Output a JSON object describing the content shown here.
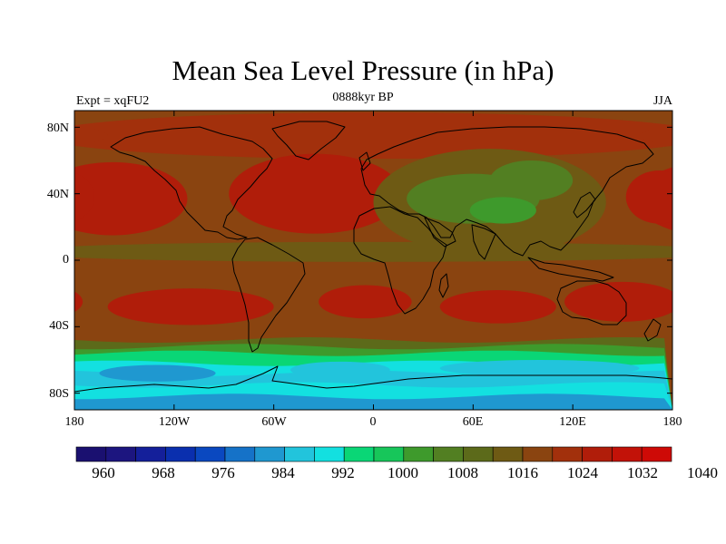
{
  "title": "Mean Sea Level Pressure (in hPa)",
  "subtitle_left": "Expt = xqFU2",
  "subtitle_center": "0888kyr BP",
  "subtitle_right": "JJA",
  "lat_ticks": [
    {
      "label": "80N",
      "lat": 80
    },
    {
      "label": "40N",
      "lat": 40
    },
    {
      "label": "0",
      "lat": 0
    },
    {
      "label": "40S",
      "lat": -40
    },
    {
      "label": "80S",
      "lat": -80
    }
  ],
  "lon_ticks": [
    {
      "label": "180",
      "lon": -180
    },
    {
      "label": "120W",
      "lon": -120
    },
    {
      "label": "60W",
      "lon": -60
    },
    {
      "label": "0",
      "lon": 0
    },
    {
      "label": "60E",
      "lon": 60
    },
    {
      "label": "120E",
      "lon": 120
    },
    {
      "label": "180",
      "lon": 180
    }
  ],
  "colorbar": {
    "unit": "hPa",
    "min": 956,
    "step": 4,
    "colors": [
      "#1a1070",
      "#1c157f",
      "#141f9a",
      "#0a2fae",
      "#0a48c0",
      "#1572c8",
      "#1f98d0",
      "#22c4dc",
      "#13e0e0",
      "#0ad676",
      "#17c65a",
      "#3e9a2c",
      "#527f22",
      "#5c6a1a",
      "#6e5a14",
      "#8a4410",
      "#a2300c",
      "#b01d0a",
      "#c21208",
      "#ce0a06"
    ],
    "labels": [
      {
        "text": "960",
        "value": 960
      },
      {
        "text": "968",
        "value": 968
      },
      {
        "text": "976",
        "value": 976
      },
      {
        "text": "984",
        "value": 984
      },
      {
        "text": "992",
        "value": 992
      },
      {
        "text": "1000",
        "value": 1000
      },
      {
        "text": "1008",
        "value": 1008
      },
      {
        "text": "1016",
        "value": 1016
      },
      {
        "text": "1024",
        "value": 1024
      },
      {
        "text": "1032",
        "value": 1032
      },
      {
        "text": "1040",
        "value": 1040
      }
    ]
  },
  "pressure_field": {
    "background_hpa": 1018,
    "regions": [
      {
        "name": "arctic-high",
        "hpa": 1022,
        "lon": 0,
        "lat": 75,
        "rlon": 200,
        "rlat": 14
      },
      {
        "name": "north-pacific-high",
        "hpa": 1030,
        "lon": -157,
        "lat": 35,
        "rlon": 32,
        "rlat": 14
      },
      {
        "name": "north-pacific-high-ring",
        "hpa": 1024,
        "lon": -157,
        "lat": 37,
        "rlon": 45,
        "rlat": 22
      },
      {
        "name": "azores-high",
        "hpa": 1030,
        "lon": -35,
        "lat": 37,
        "rlon": 38,
        "rlat": 14
      },
      {
        "name": "azores-high-ring",
        "hpa": 1024,
        "lon": -35,
        "lat": 40,
        "rlon": 52,
        "rlat": 24
      },
      {
        "name": "west-pacific-high",
        "hpa": 1024,
        "lon": 172,
        "lat": 38,
        "rlon": 20,
        "rlat": 16
      },
      {
        "name": "asia-low-outer",
        "hpa": 1012,
        "lon": 70,
        "lat": 35,
        "rlon": 70,
        "rlat": 32
      },
      {
        "name": "asia-low",
        "hpa": 1006,
        "lon": 60,
        "lat": 37,
        "rlon": 40,
        "rlat": 15
      },
      {
        "name": "asia-low-east",
        "hpa": 1006,
        "lon": 95,
        "lat": 48,
        "rlon": 25,
        "rlat": 12
      },
      {
        "name": "asia-low-core",
        "hpa": 1002,
        "lon": 78,
        "lat": 30,
        "rlon": 20,
        "rlat": 8
      },
      {
        "name": "tropical-belt",
        "hpa": 1014,
        "lon": 0,
        "lat": 5,
        "rlon": 220,
        "rlat": 6
      },
      {
        "name": "south-pacific-high",
        "hpa": 1024,
        "lon": -110,
        "lat": -28,
        "rlon": 50,
        "rlat": 11
      },
      {
        "name": "south-atlantic-high",
        "hpa": 1024,
        "lon": -5,
        "lat": -25,
        "rlon": 28,
        "rlat": 10
      },
      {
        "name": "indian-ocean-high",
        "hpa": 1026,
        "lon": 75,
        "lat": -28,
        "rlon": 35,
        "rlat": 10
      },
      {
        "name": "australia-high",
        "hpa": 1024,
        "lon": 150,
        "lat": -25,
        "rlon": 35,
        "rlat": 12
      }
    ],
    "southern_gradient": [
      {
        "lat": -48,
        "hpa": 1008
      },
      {
        "lat": -52,
        "hpa": 1000
      },
      {
        "lat": -56,
        "hpa": 994
      },
      {
        "lat": -62,
        "hpa": 990
      },
      {
        "lat": -68,
        "hpa": 984
      },
      {
        "lat": -75,
        "hpa": 988
      },
      {
        "lat": -82,
        "hpa": 982
      }
    ],
    "southern_lows": [
      {
        "name": "amundsen-low",
        "hpa": 982,
        "lon": -130,
        "lat": -68,
        "rlon": 35,
        "rlat": 5
      },
      {
        "name": "weddell-low",
        "hpa": 984,
        "lon": -20,
        "lat": -66,
        "rlon": 30,
        "rlat": 5
      },
      {
        "name": "indian-southern-low",
        "hpa": 984,
        "lon": 100,
        "lat": -65,
        "rlon": 60,
        "rlat": 5
      }
    ]
  }
}
